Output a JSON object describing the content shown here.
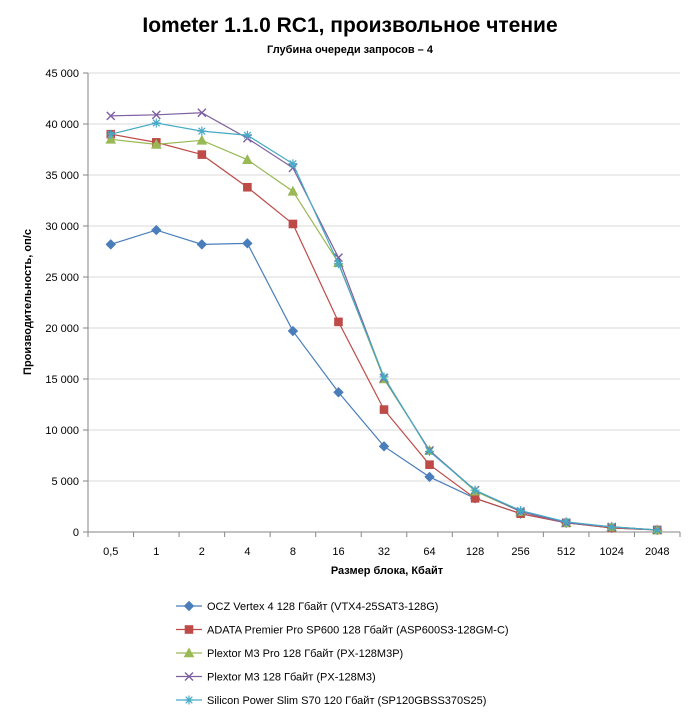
{
  "chart_data": {
    "type": "line",
    "title": "Iometer 1.1.0 RC1, произвольное чтение",
    "subtitle": "Глубина очереди запросов – 4",
    "xlabel": "Размер блока, Кбайт",
    "ylabel": "Производительность, оп/с",
    "categories": [
      "0,5",
      "1",
      "2",
      "4",
      "8",
      "16",
      "32",
      "64",
      "128",
      "256",
      "512",
      "1024",
      "2048"
    ],
    "ylim": [
      0,
      45000
    ],
    "yticks": [
      0,
      5000,
      10000,
      15000,
      20000,
      25000,
      30000,
      35000,
      40000,
      45000
    ],
    "ytick_labels": [
      "0",
      "5 000",
      "10 000",
      "15 000",
      "20 000",
      "25 000",
      "30 000",
      "35 000",
      "40 000",
      "45 000"
    ],
    "grid": "horizontal",
    "legend_position": "bottom",
    "series": [
      {
        "name": "OCZ Vertex  4 128 Гбайт (VTX4-25SAT3-128G)",
        "color": "#4a7ebb",
        "marker": "diamond",
        "values": [
          28200,
          29600,
          28200,
          28300,
          19700,
          13700,
          8400,
          5400,
          3300,
          1800,
          900,
          400,
          200
        ]
      },
      {
        "name": "ADATA  Premier Pro SP600 128 Гбайт (ASP600S3-128GM-C)",
        "color": "#be4b48",
        "marker": "square",
        "values": [
          39000,
          38200,
          37000,
          33800,
          30200,
          20600,
          12000,
          6600,
          3300,
          1800,
          900,
          400,
          200
        ]
      },
      {
        "name": "Plextor M3 Pro 128 Гбайт (PX-128M3P)",
        "color": "#98b954",
        "marker": "triangle",
        "values": [
          38500,
          38000,
          38400,
          36500,
          33400,
          26400,
          15000,
          8000,
          4000,
          2000,
          900,
          500,
          200
        ]
      },
      {
        "name": "Plextor M3 128 Гбайт (PX-128M3)",
        "color": "#7d60a0",
        "marker": "x",
        "values": [
          40800,
          40900,
          41100,
          38600,
          35700,
          26900,
          15100,
          8000,
          4100,
          2000,
          900,
          500,
          200
        ]
      },
      {
        "name": "Silicon Power Slim S70 120 Гбайт (SP120GBSS370S25)",
        "color": "#46aac5",
        "marker": "star",
        "values": [
          39000,
          40100,
          39300,
          38900,
          36100,
          26300,
          15200,
          7900,
          4100,
          2100,
          1000,
          500,
          200
        ]
      }
    ]
  }
}
